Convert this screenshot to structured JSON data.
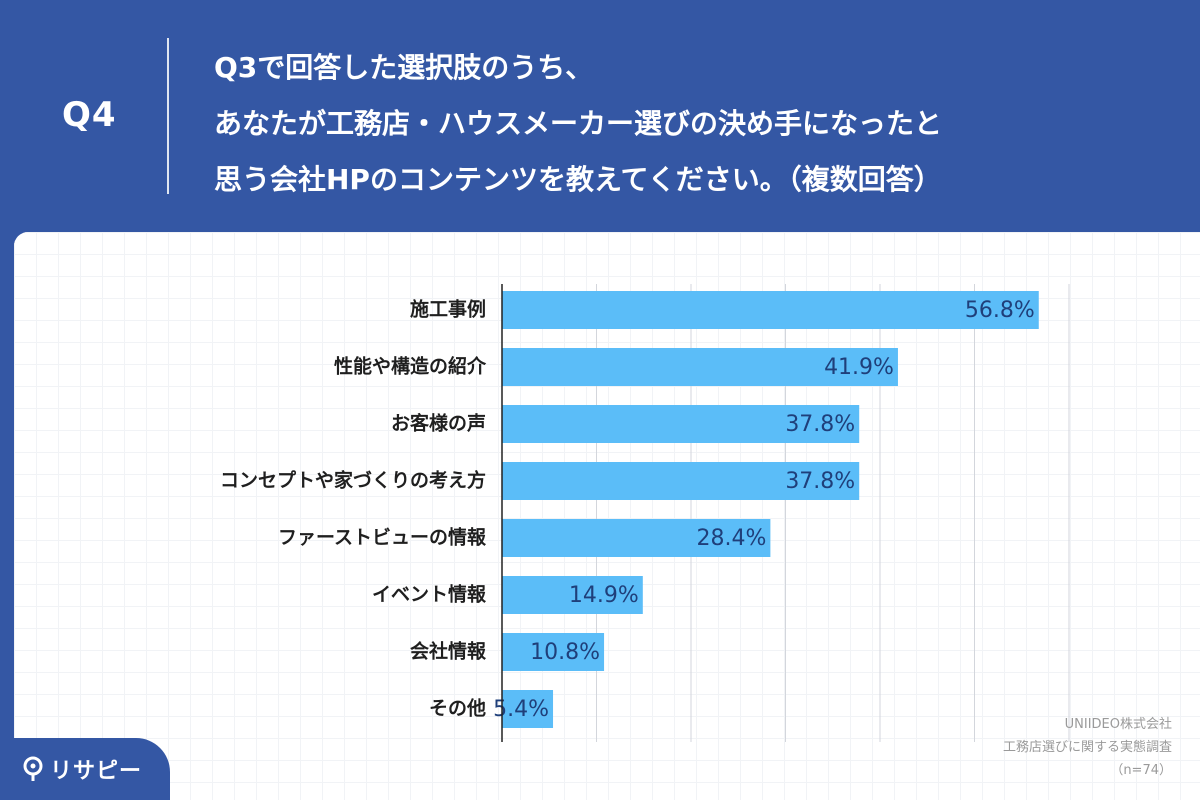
{
  "header": {
    "q_label": "Q4",
    "title_lines": [
      "Q3で回答した選択肢のうち、",
      "あなたが工務店・ハウスメーカー選びの決め手になったと",
      "思う会社HPのコンテンツを教えてください。（複数回答）"
    ]
  },
  "chart_data": {
    "type": "bar",
    "orientation": "horizontal",
    "categories": [
      "施工事例",
      "性能や構造の紹介",
      "お客様の声",
      "コンセプトや家づくりの考え方",
      "ファーストビューの情報",
      "イベント情報",
      "会社情報",
      "その他"
    ],
    "values": [
      56.8,
      41.9,
      37.8,
      37.8,
      28.4,
      14.9,
      10.8,
      5.4
    ],
    "value_labels": [
      "56.8%",
      "41.9%",
      "37.8%",
      "37.8%",
      "28.4%",
      "14.9%",
      "10.8%",
      "5.4%"
    ],
    "xlim": [
      0,
      60
    ],
    "grid": true,
    "bar_color": "#5bbdf8"
  },
  "source": {
    "company": "UNIIDEO株式会社",
    "survey": "工務店選びに関する実態調査",
    "n": "（n=74）"
  },
  "logo": {
    "text": "リサピー",
    "icon": "pin-icon"
  },
  "colors": {
    "background": "#3457a4",
    "bar": "#5bbdf8",
    "value_text": "#1f3f7a"
  }
}
